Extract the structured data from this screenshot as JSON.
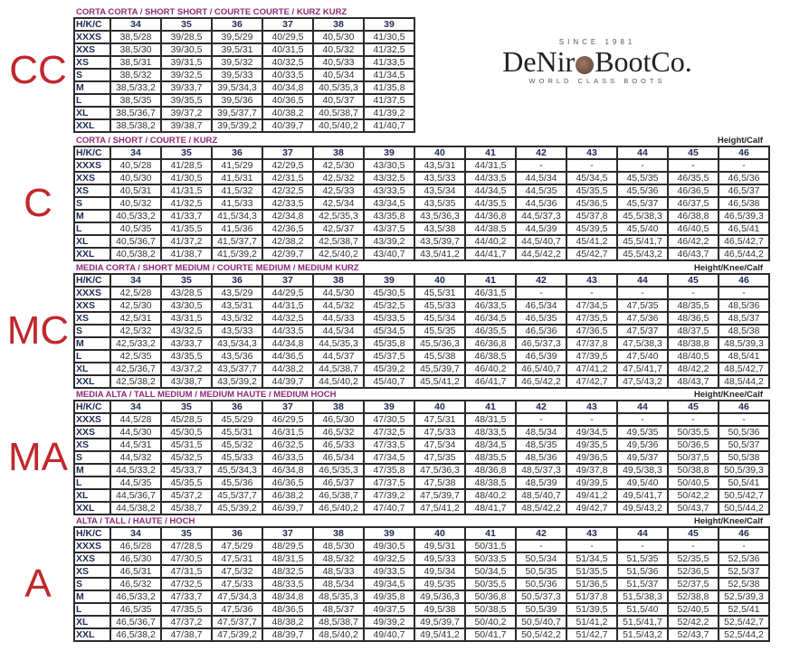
{
  "logo": {
    "since": "SINCE 1981",
    "brand_left": "DeNir",
    "brand_right": "BootCo.",
    "tagline": "WORLD CLASS BOOTS"
  },
  "colors": {
    "letters": "#c0272d",
    "titles": "#8e2a78",
    "headers": "#1d2a55"
  },
  "sections": [
    {
      "code": "CC",
      "title": "CORTA CORTA / SHORT SHORT / COURTE COURTE / KURZ KURZ",
      "measure_label": "",
      "header": [
        "H/K/C",
        "34",
        "35",
        "36",
        "37",
        "38",
        "39"
      ],
      "rows": [
        {
          "label": "XXXS",
          "cells": [
            "38,5/28",
            "39/28,5",
            "39,5/29",
            "40/29,5",
            "40,5/30",
            "41/30,5"
          ]
        },
        {
          "label": "XXS",
          "cells": [
            "38,5/30",
            "39/30,5",
            "39,5/31",
            "40/31,5",
            "40,5/32",
            "41/32,5"
          ]
        },
        {
          "label": "XS",
          "cells": [
            "38,5/31",
            "39/31,5",
            "39,5/32",
            "40/32,5",
            "40,5/33",
            "41/33,5"
          ]
        },
        {
          "label": "S",
          "cells": [
            "38,5/32",
            "39/32,5",
            "39,5/33",
            "40/33,5",
            "40,5/34",
            "41/34,5"
          ]
        },
        {
          "label": "M",
          "cells": [
            "38,5/33,2",
            "39/33,7",
            "39,5/34,3",
            "40/34,8",
            "40,5/35,3",
            "41/35,8"
          ]
        },
        {
          "label": "L",
          "cells": [
            "38,5/35",
            "39/35,5",
            "39,5/36",
            "40/36,5",
            "40,5/37",
            "41/37,5"
          ]
        },
        {
          "label": "XL",
          "cells": [
            "38,5/36,7",
            "39/37,2",
            "39,5/37,7",
            "40/38,2",
            "40,5/38,7",
            "41/39,2"
          ]
        },
        {
          "label": "XXL",
          "cells": [
            "38,5/38,2",
            "39/38,7",
            "39,5/39,2",
            "40/39,7",
            "40,5/40,2",
            "41/40,7"
          ]
        }
      ]
    },
    {
      "code": "C",
      "title": "CORTA / SHORT / COURTE / KURZ",
      "measure_label": "Height/Calf",
      "header": [
        "H/K/C",
        "34",
        "35",
        "36",
        "37",
        "38",
        "39",
        "40",
        "41",
        "42",
        "43",
        "44",
        "45",
        "46"
      ],
      "rows": [
        {
          "label": "XXXS",
          "cells": [
            "40,5/28",
            "41/28,5",
            "41,5/29",
            "42/29,5",
            "42,5/30",
            "43/30,5",
            "43,5/31",
            "44/31,5",
            "-",
            "-",
            "-",
            "-",
            "-"
          ]
        },
        {
          "label": "XXS",
          "cells": [
            "40,5/30",
            "41/30,5",
            "41,5/31",
            "42/31,5",
            "42,5/32",
            "43/32,5",
            "43,5/33",
            "44/33,5",
            "44,5/34",
            "45/34,5",
            "45,5/35",
            "46/35,5",
            "46,5/36"
          ]
        },
        {
          "label": "XS",
          "cells": [
            "40,5/31",
            "41/31,5",
            "41,5/32",
            "42/32,5",
            "42,5/33",
            "43/33,5",
            "43,5/34",
            "44/34,5",
            "44,5/35",
            "45/35,5",
            "45,5/36",
            "46/36,5",
            "46,5/37"
          ]
        },
        {
          "label": "S",
          "cells": [
            "40,5/32",
            "41/32,5",
            "41,5/33",
            "42/33,5",
            "42,5/34",
            "43/34,5",
            "43,5/35",
            "44/35,5",
            "44,5/36",
            "45/36,5",
            "45,5/37",
            "46/37,5",
            "46,5/38"
          ]
        },
        {
          "label": "M",
          "cells": [
            "40,5/33,2",
            "41/33,7",
            "41,5/34,3",
            "42/34,8",
            "42,5/35,3",
            "43/35,8",
            "43,5/36,3",
            "44/36,8",
            "44,5/37,3",
            "45/37,8",
            "45,5/38,3",
            "46/38,8",
            "46,5/39,3"
          ]
        },
        {
          "label": "L",
          "cells": [
            "40,5/35",
            "41/35,5",
            "41,5/36",
            "42/36,5",
            "42,5/37",
            "43/37,5",
            "43,5/38",
            "44/38,5",
            "44,5/39",
            "45/39,5",
            "45,5/40",
            "46/40,5",
            "46,5/41"
          ]
        },
        {
          "label": "XL",
          "cells": [
            "40,5/36,7",
            "41/37,2",
            "41,5/37,7",
            "42/38,2",
            "42,5/38,7",
            "43/39,2",
            "43,5/39,7",
            "44/40,2",
            "44,5/40,7",
            "45/41,2",
            "45,5/41,7",
            "46/42,2",
            "46,5/42,7"
          ]
        },
        {
          "label": "XXL",
          "cells": [
            "40,5/38,2",
            "41/38,7",
            "41,5/39,2",
            "42/39,7",
            "42,5/40,2",
            "43/40,7",
            "43,5/41,2",
            "44/41,7",
            "44,5/42,2",
            "45/42,7",
            "45,5/43,2",
            "46/43,7",
            "46,5/44,2"
          ]
        }
      ]
    },
    {
      "code": "MC",
      "title": "MEDIA CORTA / SHORT MEDIUM / COURTE MEDIUM / MEDIUM KURZ",
      "measure_label": "Height/Knee/Calf",
      "header": [
        "H/K/C",
        "34",
        "35",
        "36",
        "37",
        "38",
        "39",
        "40",
        "41",
        "42",
        "43",
        "44",
        "45",
        "46"
      ],
      "rows": [
        {
          "label": "XXXS",
          "cells": [
            "42,5/28",
            "43/28,5",
            "43,5/29",
            "44/29,5",
            "44,5/30",
            "45/30,5",
            "45,5/31",
            "46/31,5",
            "-",
            "-",
            "-",
            "-",
            "-"
          ]
        },
        {
          "label": "XXS",
          "cells": [
            "42,5/30",
            "43/30,5",
            "43,5/31",
            "44/31,5",
            "44,5/32",
            "45/32,5",
            "45,5/33",
            "46/33,5",
            "46,5/34",
            "47/34,5",
            "47,5/35",
            "48/35,5",
            "48,5/36"
          ]
        },
        {
          "label": "XS",
          "cells": [
            "42,5/31",
            "43/31,5",
            "43,5/32",
            "44/32,5",
            "44,5/33",
            "45/33,5",
            "45,5/34",
            "46/34,5",
            "46,5/35",
            "47/35,5",
            "47,5/36",
            "48/36,5",
            "48,5/37"
          ]
        },
        {
          "label": "S",
          "cells": [
            "42,5/32",
            "43/32,5",
            "43,5/33",
            "44/33,5",
            "44,5/34",
            "45/34,5",
            "45,5/35",
            "46/35,5",
            "46,5/36",
            "47/36,5",
            "47,5/37",
            "48/37,5",
            "48,5/38"
          ]
        },
        {
          "label": "M",
          "cells": [
            "42,5/33,2",
            "43/33,7",
            "43,5/34,3",
            "44/34,8",
            "44,5/35,3",
            "45/35,8",
            "45,5/36,3",
            "46/36,8",
            "46,5/37,3",
            "47/37,8",
            "47,5/38,3",
            "48/38,8",
            "48,5/39,3"
          ]
        },
        {
          "label": "L",
          "cells": [
            "42,5/35",
            "43/35,5",
            "43,5/36",
            "44/36,5",
            "44,5/37",
            "45/37,5",
            "45,5/38",
            "46/38,5",
            "46,5/39",
            "47/39,5",
            "47,5/40",
            "48/40,5",
            "48,5/41"
          ]
        },
        {
          "label": "XL",
          "cells": [
            "42,5/36,7",
            "43/37,2",
            "43,5/37,7",
            "44/38,2",
            "44,5/38,7",
            "45/39,2",
            "45,5/39,7",
            "46/40,2",
            "46,5/40,7",
            "47/41,2",
            "47,5/41,7",
            "48/42,2",
            "48,5/42,7"
          ]
        },
        {
          "label": "XXL",
          "cells": [
            "42,5/38,2",
            "43/38,7",
            "43,5/39,2",
            "44/39,7",
            "44,5/40,2",
            "45/40,7",
            "45,5/41,2",
            "46/41,7",
            "46,5/42,2",
            "47/42,7",
            "47,5/43,2",
            "48/43,7",
            "48,5/44,2"
          ]
        }
      ]
    },
    {
      "code": "MA",
      "title": "MEDIA ALTA / TALL MEDIUM / MEDIUM HAUTE / MEDIUM HOCH",
      "measure_label": "Height/Knee/Calf",
      "header": [
        "H/K/C",
        "34",
        "35",
        "36",
        "37",
        "38",
        "39",
        "40",
        "41",
        "42",
        "43",
        "44",
        "45",
        "46"
      ],
      "rows": [
        {
          "label": "XXXS",
          "cells": [
            "44,5/28",
            "45/28,5",
            "45,5/29",
            "46/29,5",
            "46,5/30",
            "47/30,5",
            "47,5/31",
            "48/31,5",
            "-",
            "-",
            "-",
            "-",
            "-"
          ]
        },
        {
          "label": "XXS",
          "cells": [
            "44,5/30",
            "45/30,5",
            "45,5/31",
            "46/31,5",
            "46,5/32",
            "47/32,5",
            "47,5/33",
            "48/33,5",
            "48,5/34",
            "49/34,5",
            "49,5/35",
            "50/35,5",
            "50,5/36"
          ]
        },
        {
          "label": "XS",
          "cells": [
            "44,5/31",
            "45/31,5",
            "45,5/32",
            "46/32,5",
            "46,5/33",
            "47/33,5",
            "47,5/34",
            "48/34,5",
            "48,5/35",
            "49/35,5",
            "49,5/36",
            "50/36,5",
            "50,5/37"
          ]
        },
        {
          "label": "S",
          "cells": [
            "44,5/32",
            "45/32,5",
            "45,5/33",
            "46/33,5",
            "46,5/34",
            "47/34,5",
            "47,5/35",
            "48/35,5",
            "48,5/36",
            "49/36,5",
            "49,5/37",
            "50/37,5",
            "50,5/38"
          ]
        },
        {
          "label": "M",
          "cells": [
            "44,5/33,2",
            "45/33,7",
            "45,5/34,3",
            "46/34,8",
            "46,5/35,3",
            "47/35,8",
            "47,5/36,3",
            "48/36,8",
            "48,5/37,3",
            "49/37,8",
            "49,5/38,3",
            "50/38,8",
            "50,5/39,3"
          ]
        },
        {
          "label": "L",
          "cells": [
            "44,5/35",
            "45/35,5",
            "45,5/36",
            "46/36,5",
            "46,5/37",
            "47/37,5",
            "47,5/38",
            "48/38,5",
            "48,5/39",
            "49/39,5",
            "49,5/40",
            "50/40,5",
            "50,5/41"
          ]
        },
        {
          "label": "XL",
          "cells": [
            "44,5/36,7",
            "45/37,2",
            "45,5/37,7",
            "46/38,2",
            "46,5/38,7",
            "47/39,2",
            "47,5/39,7",
            "48/40,2",
            "48,5/40,7",
            "49/41,2",
            "49,5/41,7",
            "50/42,2",
            "50,5/42,7"
          ]
        },
        {
          "label": "XXL",
          "cells": [
            "44,5/38,2",
            "45/38,7",
            "45,5/39,2",
            "46/39,7",
            "46,5/40,2",
            "47/40,7",
            "47,5/41,2",
            "48/41,7",
            "48,5/42,2",
            "49/42,7",
            "49,5/43,2",
            "50/43,7",
            "50,5/44,2"
          ]
        }
      ]
    },
    {
      "code": "A",
      "title": "ALTA / TALL / HAUTE / HOCH",
      "measure_label": "Height/Knee/Calf",
      "header": [
        "H/K/C",
        "34",
        "35",
        "36",
        "37",
        "38",
        "39",
        "40",
        "41",
        "42",
        "43",
        "44",
        "45",
        "46"
      ],
      "rows": [
        {
          "label": "XXXS",
          "cells": [
            "46,5/28",
            "47/28,5",
            "47,5/29",
            "48/29,5",
            "48,5/30",
            "49/30,5",
            "49,5/31",
            "50/31,5",
            "-",
            "-",
            "-",
            "-",
            "-"
          ]
        },
        {
          "label": "XXS",
          "cells": [
            "46,5/30",
            "47/30,5",
            "47,5/31",
            "48/31,5",
            "48,5/32",
            "49/32,5",
            "49,5/33",
            "50/33,5",
            "50,5/34",
            "51/34,5",
            "51,5/35",
            "52/35,5",
            "52,5/36"
          ]
        },
        {
          "label": "XS",
          "cells": [
            "46,5/31",
            "47/31,5",
            "47,5/32",
            "48/32,5",
            "48,5/33",
            "49/33,5",
            "49,5/34",
            "50/34,5",
            "50,5/35",
            "51/35,5",
            "51,5/36",
            "52/36,5",
            "52,5/37"
          ]
        },
        {
          "label": "S",
          "cells": [
            "46,5/32",
            "47/32,5",
            "47,5/33",
            "48/33,5",
            "48,5/34",
            "49/34,5",
            "49,5/35",
            "50/35,5",
            "50,5/36",
            "51/36,5",
            "51,5/37",
            "52/37,5",
            "52,5/38"
          ]
        },
        {
          "label": "M",
          "cells": [
            "46,5/33,2",
            "47/33,7",
            "47,5/34,3",
            "48/34,8",
            "48,5/35,3",
            "49/35,8",
            "49,5/36,3",
            "50/36,8",
            "50,5/37,3",
            "51/37,8",
            "51,5/38,3",
            "52/38,8",
            "52,5/39,3"
          ]
        },
        {
          "label": "L",
          "cells": [
            "46,5/35",
            "47/35,5",
            "47,5/36",
            "48/36,5",
            "48,5/37",
            "49/37,5",
            "49,5/38",
            "50/38,5",
            "50,5/39",
            "51/39,5",
            "51,5/40",
            "52/40,5",
            "52,5/41"
          ]
        },
        {
          "label": "XL",
          "cells": [
            "46,5/36,7",
            "47/37,2",
            "47,5/37,7",
            "48/38,2",
            "48,5/38,7",
            "49/39,2",
            "49,5/39,7",
            "50/40,2",
            "50,5/40,7",
            "51/41,2",
            "51,5/41,7",
            "52/42,2",
            "52,5/42,7"
          ]
        },
        {
          "label": "XXL",
          "cells": [
            "46,5/38,2",
            "47/38,7",
            "47,5/39,2",
            "48/39,7",
            "48,5/40,2",
            "49/40,7",
            "49,5/41,2",
            "50/41,7",
            "50,5/42,2",
            "51/42,7",
            "51,5/43,2",
            "52/43,7",
            "52,5/44,2"
          ]
        }
      ]
    }
  ]
}
